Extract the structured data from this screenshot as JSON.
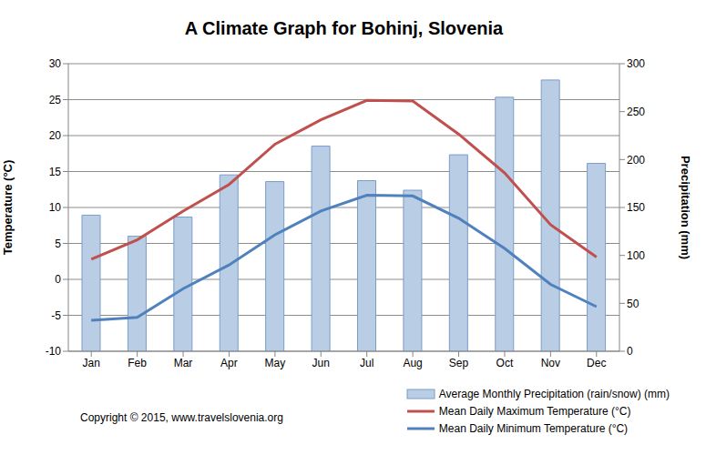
{
  "chart_data": {
    "type": "bar",
    "title": "A Climate Graph for Bohinj, Slovenia",
    "categories": [
      "Jan",
      "Feb",
      "Mar",
      "Apr",
      "May",
      "Jun",
      "Jul",
      "Aug",
      "Sep",
      "Oct",
      "Nov",
      "Dec"
    ],
    "series": [
      {
        "name": "Average Monthly Precipitation (rain/snow) (mm)",
        "type": "bar",
        "color": "#b9cde5",
        "axis": "y2",
        "values": [
          142,
          120,
          140,
          184,
          177,
          214,
          178,
          168,
          205,
          265,
          283,
          196
        ]
      },
      {
        "name": "Mean Daily Maximum Temperature  (°C)",
        "type": "line",
        "color": "#c0504d",
        "values": [
          2.8,
          5.5,
          9.5,
          13.2,
          18.8,
          22.2,
          24.9,
          24.8,
          20.2,
          14.8,
          7.6,
          3.1
        ]
      },
      {
        "name": "Mean Daily Minimum Temperature (°C)",
        "type": "line",
        "color": "#4f81bd",
        "values": [
          -5.7,
          -5.3,
          -1.3,
          2.0,
          6.2,
          9.5,
          11.7,
          11.6,
          8.5,
          4.3,
          -0.7,
          -3.8
        ]
      }
    ],
    "y_label": "Temperature (°C)",
    "y2_label": "Precipitation (mm)",
    "ylim": [
      -10,
      30
    ],
    "yticks": [
      -10,
      -5,
      0,
      5,
      10,
      15,
      20,
      25,
      30
    ],
    "y2lim": [
      0,
      300
    ],
    "y2ticks": [
      0,
      50,
      100,
      150,
      200,
      250,
      300
    ],
    "grid": true,
    "legend": "bottom-right",
    "annotations": [
      "Copyright © 2015, www.travelslovenia.org"
    ]
  }
}
